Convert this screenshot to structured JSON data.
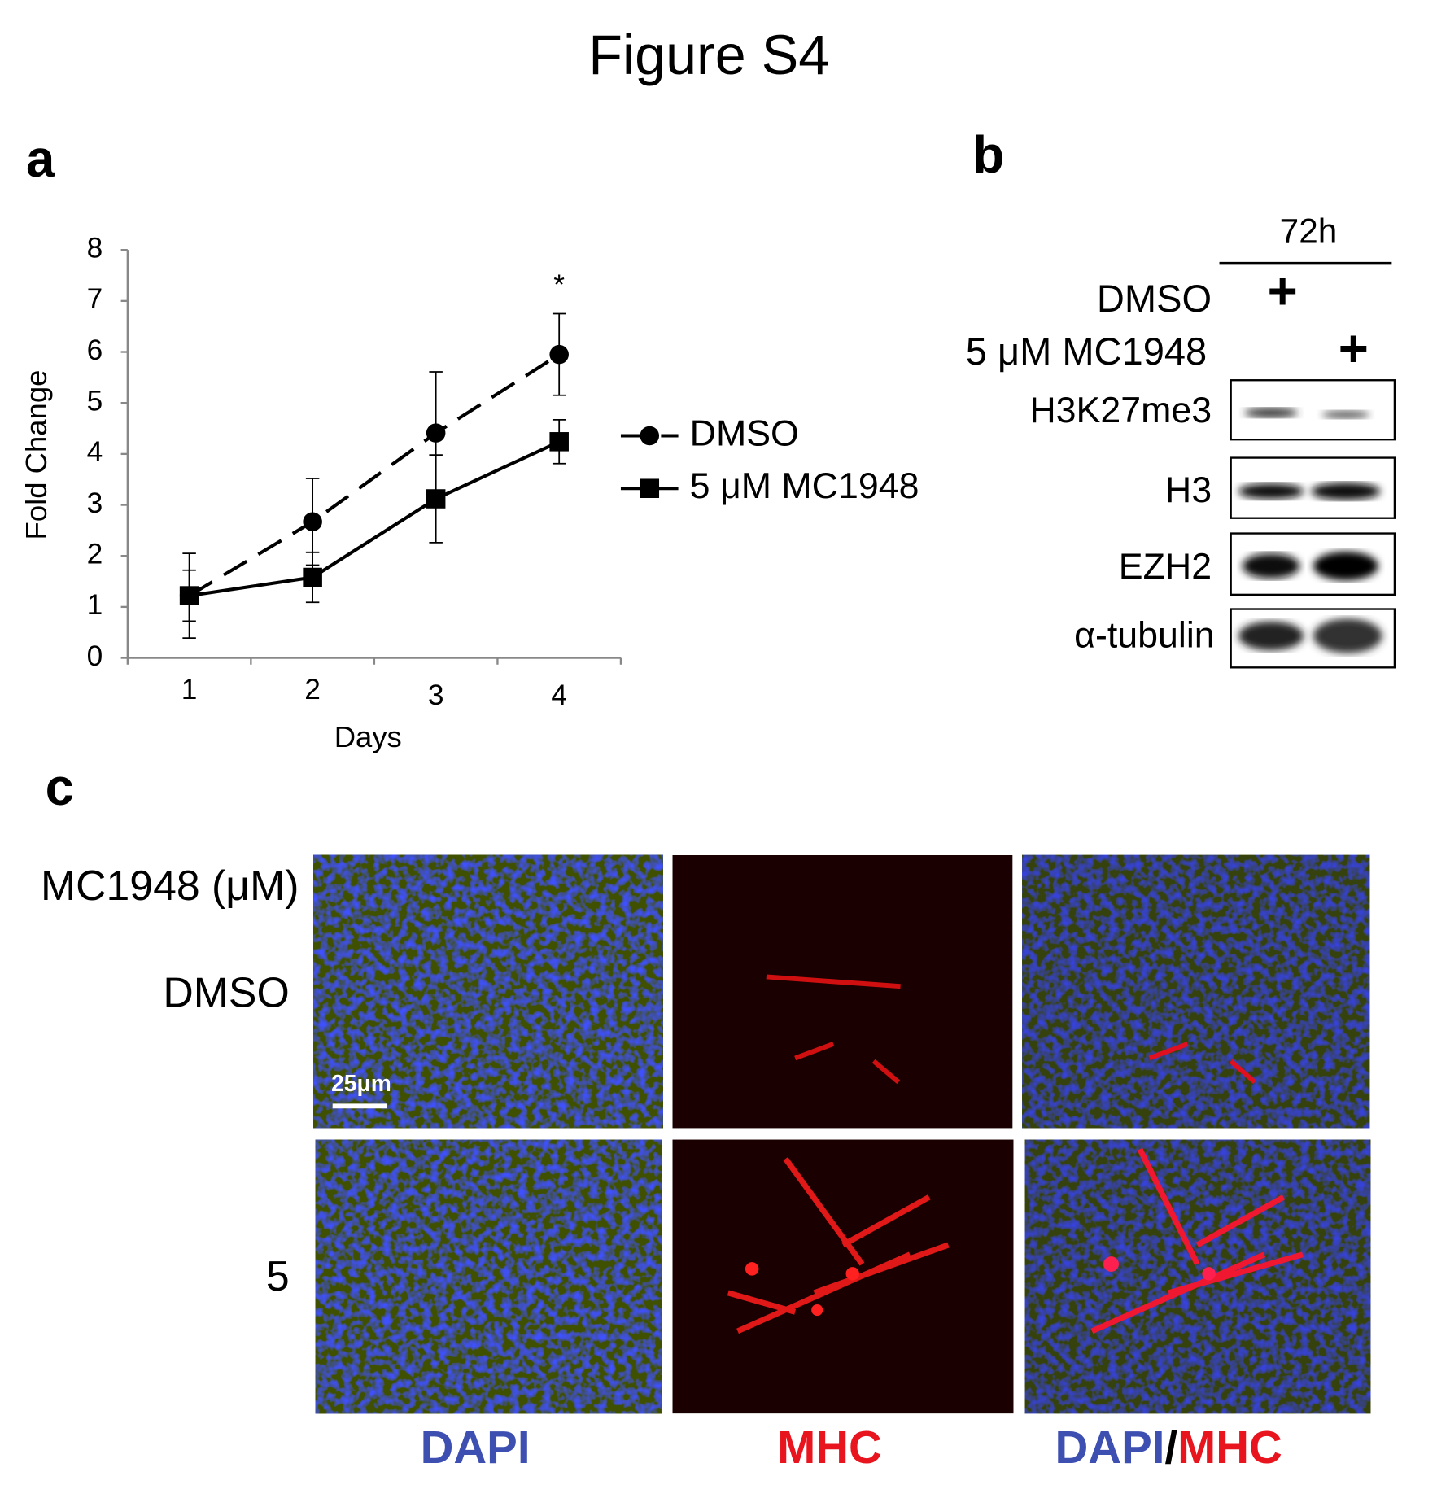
{
  "title": "Figure S4",
  "panels": [
    "a",
    "b",
    "c"
  ],
  "chart_data": {
    "type": "line",
    "x_label": "Days",
    "y_label": "Fold Change",
    "categories": [
      "1",
      "2",
      "3",
      "4"
    ],
    "series": [
      {
        "name": "DMSO",
        "color": "#000000",
        "dashed": true,
        "marker": "circle",
        "values": [
          1.22,
          2.67,
          4.41,
          5.95
        ],
        "errors": [
          0.83,
          0.85,
          1.2,
          0.8
        ]
      },
      {
        "name": "5 μM MC1948",
        "color": "#000000",
        "dashed": false,
        "marker": "square",
        "values": [
          1.22,
          1.58,
          3.12,
          4.24
        ],
        "errors": [
          0.5,
          0.49,
          0.86,
          0.43
        ]
      }
    ],
    "ylim": [
      0,
      8
    ],
    "yticks": [
      0,
      1,
      2,
      3,
      4,
      5,
      6,
      7,
      8
    ],
    "annotation": "*",
    "legend": "right"
  },
  "blot": {
    "time": "72h",
    "conditions": [
      {
        "label": "DMSO",
        "marks": [
          "+",
          ""
        ]
      },
      {
        "label": "5 μM MC1948",
        "marks": [
          "",
          "+"
        ]
      }
    ],
    "bands": [
      "H3K27me3",
      "H3",
      "EZH2",
      "α-tubulin"
    ]
  },
  "imaging": {
    "row_header": "MC1948 (μM)",
    "rows": [
      "DMSO",
      "5"
    ],
    "columns": [
      "DAPI",
      "MHC"
    ],
    "merged_label": [
      "DAPI",
      "/",
      "MHC"
    ],
    "scale_bar": "25μm"
  }
}
